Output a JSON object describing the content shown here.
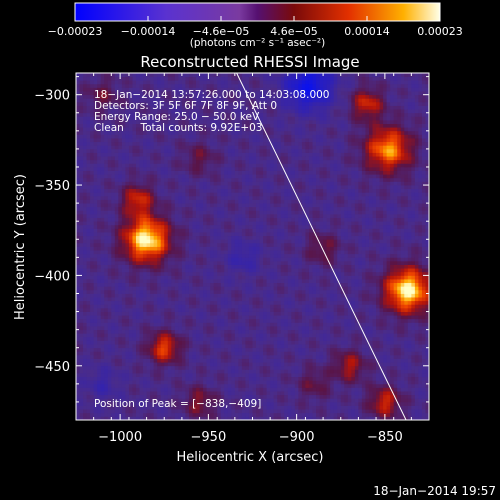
{
  "chart_data": {
    "type": "heatmap",
    "title": "Reconstructed RHESSI Image",
    "xlabel": "Heliocentric X (arcsec)",
    "ylabel": "Heliocentric Y (arcsec)",
    "xlim": [
      -1025,
      -825
    ],
    "ylim": [
      -480,
      -288
    ],
    "x_ticks": [
      "−1000",
      "−950",
      "−900",
      "−850"
    ],
    "x_tick_values": [
      -1000,
      -950,
      -900,
      -850
    ],
    "y_ticks": [
      "−300",
      "−350",
      "−400",
      "−450"
    ],
    "y_tick_values": [
      -300,
      -350,
      -400,
      -450
    ],
    "colorbar": {
      "min": -0.00023,
      "max": 0.00023,
      "ticks": [
        "−0.00023",
        "−0.00014",
        "−4.6e−05",
        "4.6e−05",
        "0.00014",
        "0.00023"
      ],
      "units": "(photons cm⁻² s⁻¹ asec⁻²)"
    },
    "info_lines": [
      "18−Jan−2014 13:57:26.000 to 14:03:08.000",
      "Detectors: 3F 5F 6F 7F 8F 9F, Att 0",
      "Energy Range: 25.0 − 50.0 keV",
      "Clean     Total counts: 9.92E+03"
    ],
    "peak_label": "Position of Peak = [−838,−409]",
    "peak_position": [
      -838,
      -409
    ],
    "blobs": [
      {
        "x": -985,
        "y": -380,
        "value": 0.00023
      },
      {
        "x": -990,
        "y": -358,
        "value": 0.00012
      },
      {
        "x": -848,
        "y": -330,
        "value": 0.00018
      },
      {
        "x": -860,
        "y": -305,
        "value": 0.00012
      },
      {
        "x": -837,
        "y": -408,
        "value": 0.00023
      },
      {
        "x": -975,
        "y": -440,
        "value": 0.00014
      },
      {
        "x": -955,
        "y": -470,
        "value": 8e-05
      },
      {
        "x": -1010,
        "y": -300,
        "value": 6e-05
      },
      {
        "x": -955,
        "y": -335,
        "value": 6e-05
      },
      {
        "x": -885,
        "y": -385,
        "value": 7e-05
      },
      {
        "x": -870,
        "y": -450,
        "value": 0.0001
      },
      {
        "x": -850,
        "y": -470,
        "value": 0.00012
      },
      {
        "x": -890,
        "y": -460,
        "value": 6e-05
      },
      {
        "x": -893,
        "y": -295,
        "value": -0.00018
      },
      {
        "x": -930,
        "y": -390,
        "value": -6e-05
      },
      {
        "x": -1010,
        "y": -460,
        "value": -5e-05
      }
    ],
    "limb_line": {
      "x": [
        -934,
        -838
      ],
      "y": [
        -288,
        -480
      ]
    }
  },
  "footer": {
    "date": "18−Jan−2014 19:57"
  }
}
